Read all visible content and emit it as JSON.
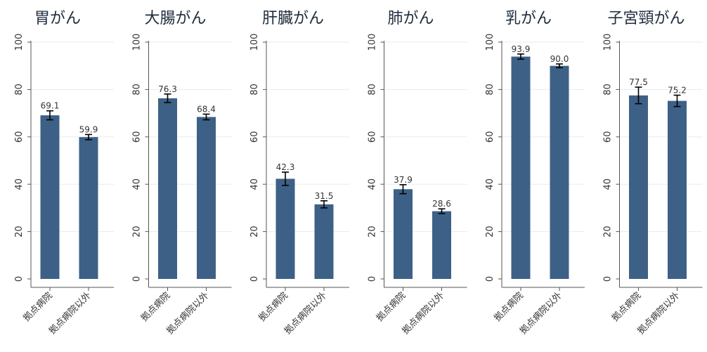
{
  "chart_data": {
    "type": "bar",
    "categories": [
      "拠点病院",
      "拠点病院以外"
    ],
    "ylim": [
      0,
      100
    ],
    "yticks": [
      0,
      20,
      40,
      60,
      80,
      100
    ],
    "grid": true,
    "bar_color": "#3d6186",
    "panels": [
      {
        "title": "胃がん",
        "values": [
          69.1,
          59.9
        ],
        "labels": [
          "69.1",
          "59.9"
        ],
        "err_low": [
          67.2,
          58.8
        ],
        "err_high": [
          71.0,
          61.0
        ]
      },
      {
        "title": "大腸がん",
        "values": [
          76.3,
          68.4
        ],
        "labels": [
          "76.3",
          "68.4"
        ],
        "err_low": [
          74.5,
          67.2
        ],
        "err_high": [
          78.1,
          69.6
        ]
      },
      {
        "title": "肝臓がん",
        "values": [
          42.3,
          31.5
        ],
        "labels": [
          "42.3",
          "31.5"
        ],
        "err_low": [
          39.5,
          30.0
        ],
        "err_high": [
          45.1,
          33.0
        ]
      },
      {
        "title": "肺がん",
        "values": [
          37.9,
          28.6
        ],
        "labels": [
          "37.9",
          "28.6"
        ],
        "err_low": [
          36.0,
          27.6
        ],
        "err_high": [
          39.8,
          29.6
        ]
      },
      {
        "title": "乳がん",
        "values": [
          93.9,
          90.0
        ],
        "labels": [
          "93.9",
          "90.0"
        ],
        "err_low": [
          92.8,
          89.2
        ],
        "err_high": [
          95.0,
          90.8
        ]
      },
      {
        "title": "子宮頸がん",
        "values": [
          77.5,
          75.2
        ],
        "labels": [
          "77.5",
          "75.2"
        ],
        "err_low": [
          74.0,
          72.8
        ],
        "err_high": [
          81.0,
          77.6
        ]
      }
    ]
  }
}
